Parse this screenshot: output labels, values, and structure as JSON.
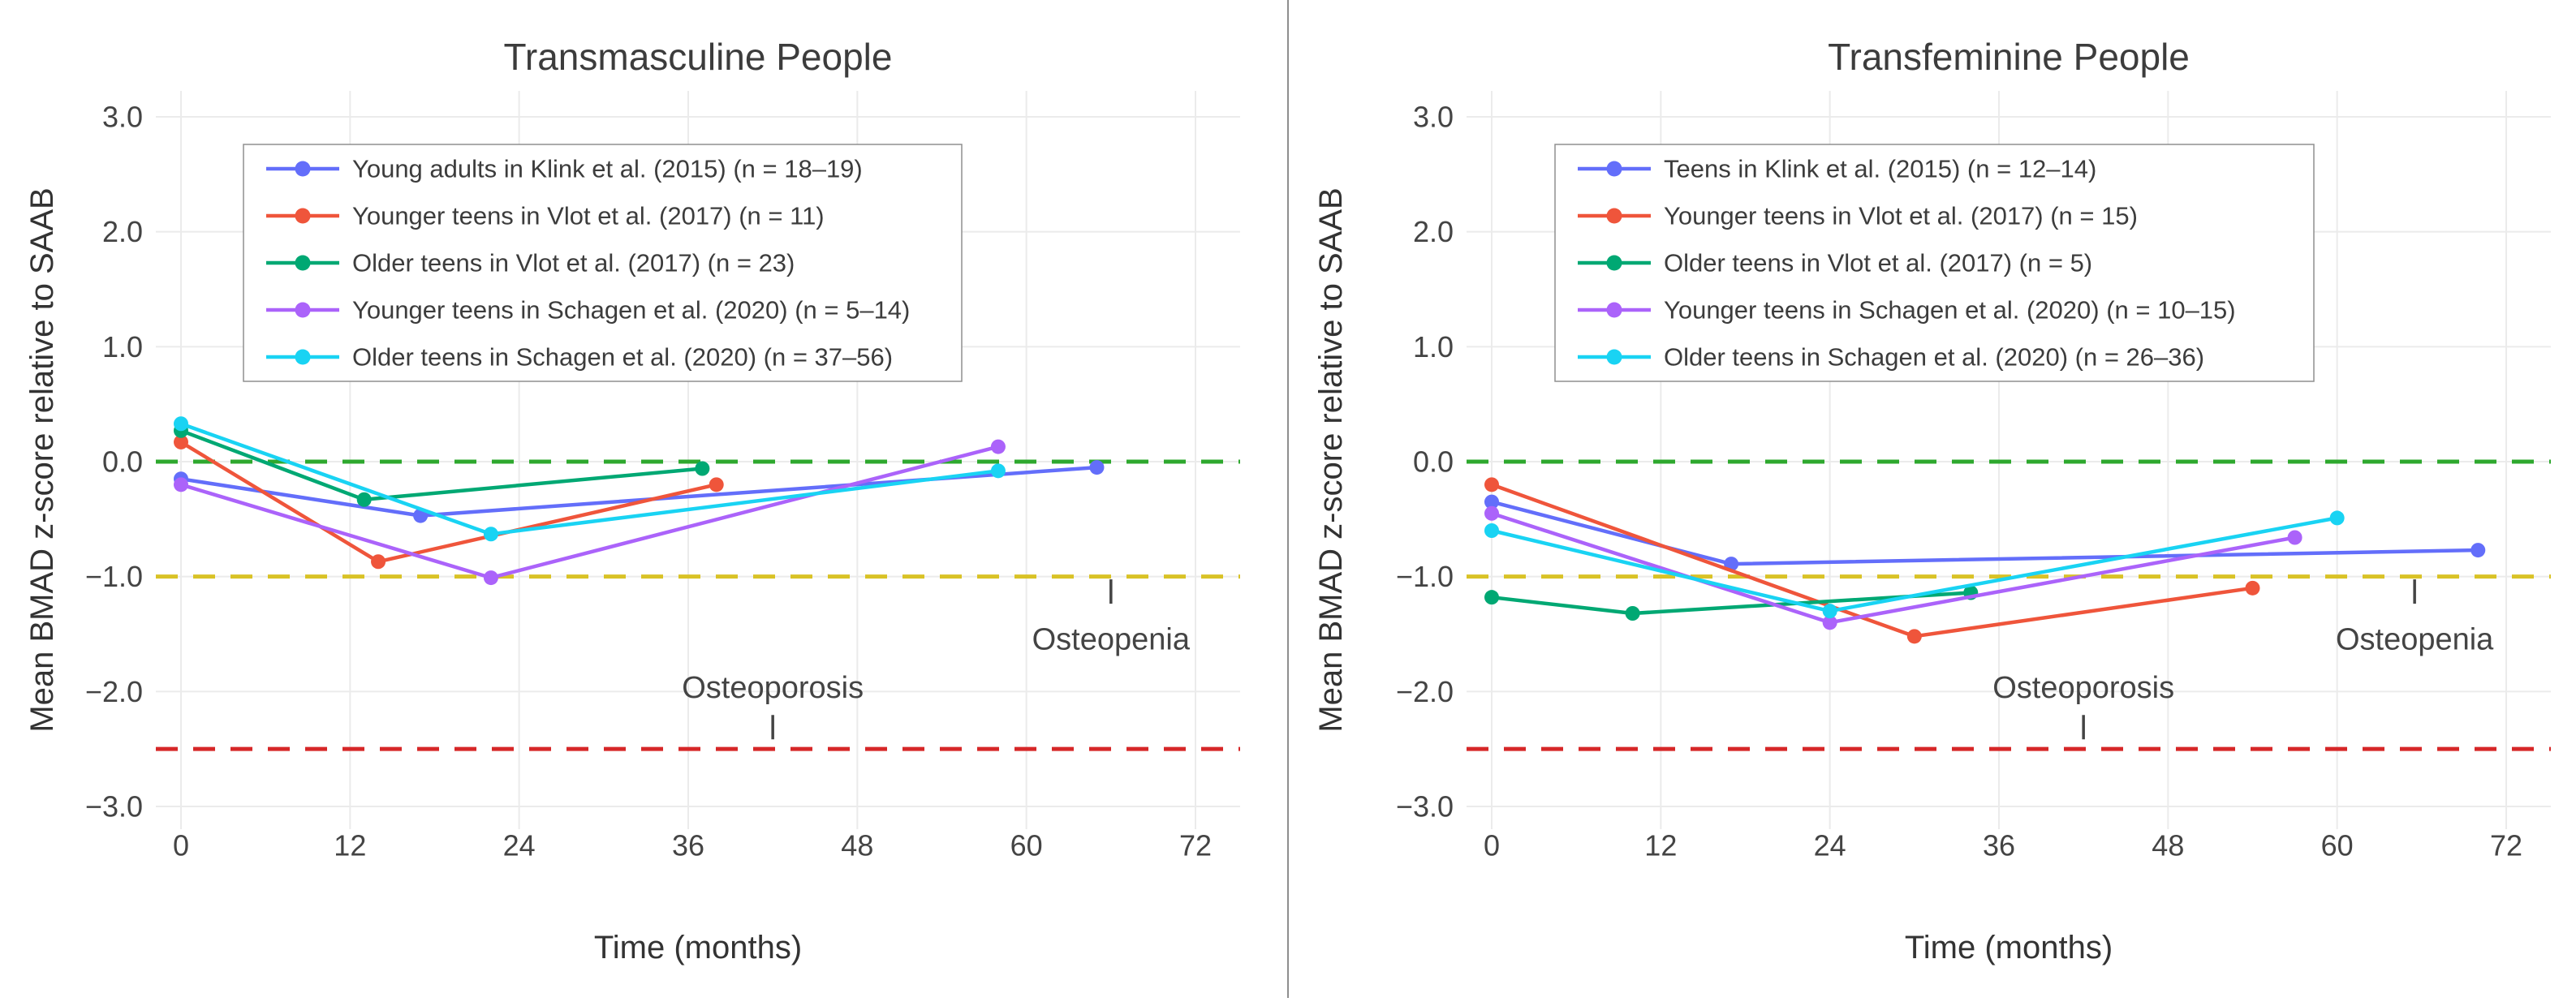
{
  "chart_data": [
    {
      "type": "line",
      "title": "Transmasculine People",
      "xlabel": "Time (months)",
      "ylabel": "Mean BMAD z-score relative to SAAB",
      "x_ticks": [
        0,
        12,
        24,
        36,
        48,
        60,
        72
      ],
      "y_ticks": [
        3,
        2,
        1,
        0,
        -1,
        -2,
        -3
      ],
      "xlim": [
        0,
        72
      ],
      "ylim": [
        -3,
        3
      ],
      "grid": true,
      "legend_position": "top-left",
      "series": [
        {
          "name": "Young adults in Klink et al. (2015) (n = 18–19)",
          "color": "#636EFA",
          "points": [
            [
              0,
              -0.15
            ],
            [
              17,
              -0.47
            ],
            [
              65,
              -0.05
            ]
          ]
        },
        {
          "name": "Younger teens in Vlot et al. (2017) (n = 11)",
          "color": "#EF553B",
          "points": [
            [
              0,
              0.17
            ],
            [
              14,
              -0.87
            ],
            [
              38,
              -0.2
            ]
          ]
        },
        {
          "name": "Older teens in Vlot et al. (2017) (n = 23)",
          "color": "#00A873",
          "points": [
            [
              0,
              0.27
            ],
            [
              13,
              -0.33
            ],
            [
              37,
              -0.06
            ]
          ]
        },
        {
          "name": "Younger teens in Schagen et al. (2020) (n = 5–14)",
          "color": "#AB63FA",
          "points": [
            [
              0,
              -0.2
            ],
            [
              22,
              -1.01
            ],
            [
              58,
              0.13
            ]
          ]
        },
        {
          "name": "Older teens in Schagen et al. (2020) (n = 37–56)",
          "color": "#19D3F3",
          "points": [
            [
              0,
              0.33
            ],
            [
              22,
              -0.63
            ],
            [
              58,
              -0.08
            ]
          ]
        }
      ],
      "reference_lines": [
        {
          "y": 0.0,
          "color": "#2EA82E",
          "style": "dashed"
        },
        {
          "y": -1.0,
          "color": "#D9C226",
          "style": "dashed"
        },
        {
          "y": -2.5,
          "color": "#D62728",
          "style": "dashed"
        }
      ],
      "annotations": [
        {
          "text": "Osteopenia",
          "x": 66,
          "y": -1.55,
          "tick_x": 66,
          "tick_y": -1.13
        },
        {
          "text": "Osteoporosis",
          "x": 42,
          "y": -1.97,
          "tick_x": 42,
          "tick_y": -2.31
        }
      ]
    },
    {
      "type": "line",
      "title": "Transfeminine People",
      "xlabel": "Time (months)",
      "ylabel": "Mean BMAD z-score relative to SAAB",
      "x_ticks": [
        0,
        12,
        24,
        36,
        48,
        60,
        72
      ],
      "y_ticks": [
        3,
        2,
        1,
        0,
        -1,
        -2,
        -3
      ],
      "xlim": [
        0,
        72
      ],
      "ylim": [
        -3,
        3
      ],
      "grid": true,
      "legend_position": "top-left",
      "series": [
        {
          "name": "Teens in Klink et al. (2015) (n = 12–14)",
          "color": "#636EFA",
          "points": [
            [
              0,
              -0.35
            ],
            [
              17,
              -0.89
            ],
            [
              70,
              -0.77
            ]
          ]
        },
        {
          "name": "Younger teens in Vlot et al. (2017) (n = 15)",
          "color": "#EF553B",
          "points": [
            [
              0,
              -0.2
            ],
            [
              30,
              -1.52
            ],
            [
              54,
              -1.1
            ]
          ]
        },
        {
          "name": "Older teens in Vlot et al. (2017) (n = 5)",
          "color": "#00A873",
          "points": [
            [
              0,
              -1.18
            ],
            [
              10,
              -1.32
            ],
            [
              34,
              -1.14
            ]
          ]
        },
        {
          "name": "Younger teens in Schagen et al. (2020) (n = 10–15)",
          "color": "#AB63FA",
          "points": [
            [
              0,
              -0.45
            ],
            [
              24,
              -1.4
            ],
            [
              57,
              -0.66
            ]
          ]
        },
        {
          "name": "Older teens in Schagen et al. (2020) (n = 26–36)",
          "color": "#19D3F3",
          "points": [
            [
              0,
              -0.6
            ],
            [
              24,
              -1.3
            ],
            [
              60,
              -0.49
            ]
          ]
        }
      ],
      "reference_lines": [
        {
          "y": 0.0,
          "color": "#2EA82E",
          "style": "dashed"
        },
        {
          "y": -1.0,
          "color": "#D9C226",
          "style": "dashed"
        },
        {
          "y": -2.5,
          "color": "#D62728",
          "style": "dashed"
        }
      ],
      "annotations": [
        {
          "text": "Osteopenia",
          "x": 65.5,
          "y": -1.55,
          "tick_x": 65.5,
          "tick_y": -1.13
        },
        {
          "text": "Osteoporosis",
          "x": 42,
          "y": -1.97,
          "tick_x": 42,
          "tick_y": -2.31
        }
      ]
    }
  ]
}
